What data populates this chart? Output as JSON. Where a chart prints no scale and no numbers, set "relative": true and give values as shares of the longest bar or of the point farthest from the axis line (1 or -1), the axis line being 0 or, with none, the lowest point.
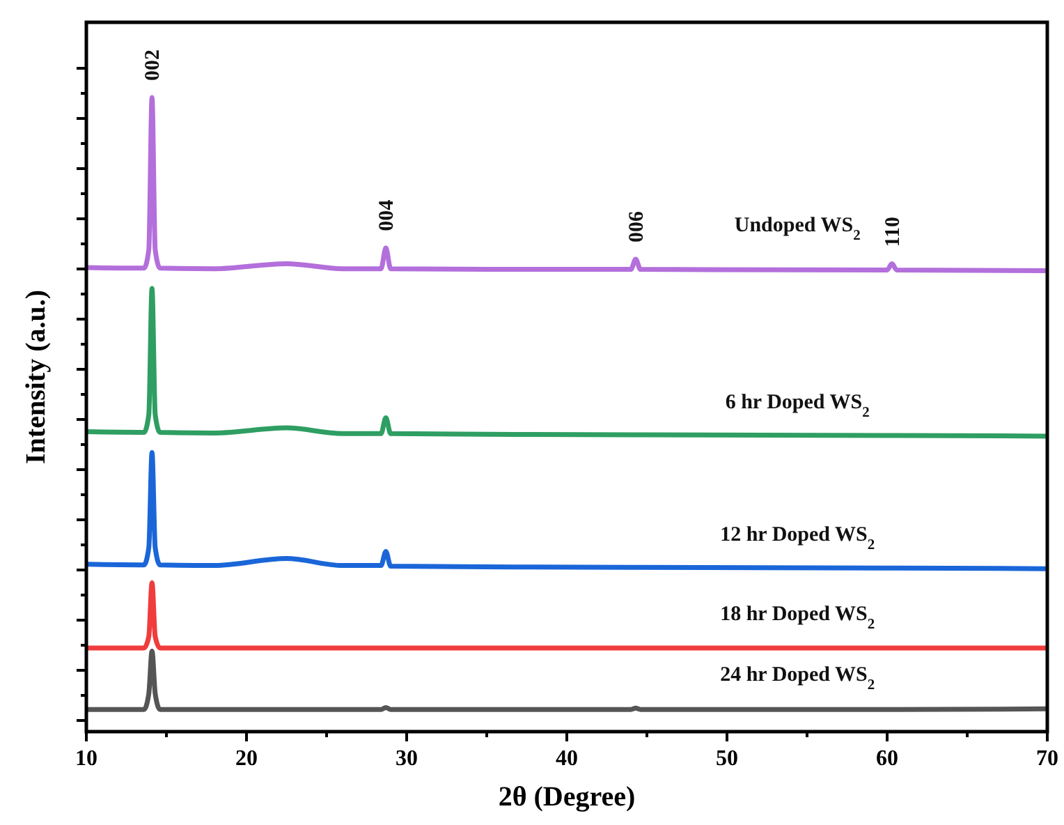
{
  "chart_data": {
    "type": "line",
    "relative": true,
    "xlabel": "2θ (Degree)",
    "ylabel": "Intensity (a.u.)",
    "x": [
      10,
      13.6,
      13.9,
      14.1,
      14.3,
      14.6,
      18,
      22.5,
      26,
      28.4,
      28.7,
      29.0,
      35,
      44.0,
      44.3,
      44.6,
      60.0,
      60.3,
      60.6,
      70
    ],
    "xlim": [
      10,
      70
    ],
    "xticks": [
      10,
      {
        "value": 15,
        "label": null
      },
      20,
      {
        "value": 25,
        "label": null
      },
      30,
      {
        "value": 35,
        "label": null
      },
      40,
      {
        "value": 45,
        "label": null
      },
      50,
      {
        "value": 55,
        "label": null
      },
      60,
      {
        "value": 65,
        "label": null
      },
      70
    ],
    "series": [
      {
        "name": "Undoped WS$_{2}$",
        "color": "#b36fdb",
        "values": [
          0.732,
          0.731,
          0.76,
          1.0,
          0.76,
          0.731,
          0.73,
          0.738,
          0.73,
          0.73,
          0.763,
          0.73,
          0.729,
          0.729,
          0.745,
          0.729,
          0.728,
          0.738,
          0.728,
          0.727
        ]
      },
      {
        "name": "6 hr Doped WS$_{2}$",
        "color": "#2e9e62",
        "values": [
          0.473,
          0.472,
          0.5,
          0.699,
          0.5,
          0.472,
          0.471,
          0.479,
          0.47,
          0.47,
          0.495,
          0.47,
          0.469,
          0.468,
          0.468,
          0.468,
          0.467,
          0.467,
          0.467,
          0.466
        ]
      },
      {
        "name": "12 hr Doped WS$_{2}$",
        "color": "#1a66d9",
        "values": [
          0.264,
          0.263,
          0.29,
          0.44,
          0.29,
          0.263,
          0.262,
          0.273,
          0.262,
          0.262,
          0.284,
          0.261,
          0.26,
          0.259,
          0.259,
          0.259,
          0.258,
          0.258,
          0.258,
          0.257
        ]
      },
      {
        "name": "18 hr Doped WS$_{2}$",
        "color": "#f03c3c",
        "values": [
          0.132,
          0.132,
          0.15,
          0.235,
          0.15,
          0.132,
          0.132,
          0.132,
          0.132,
          0.132,
          0.132,
          0.132,
          0.132,
          0.132,
          0.132,
          0.132,
          0.132,
          0.132,
          0.132,
          0.132
        ]
      },
      {
        "name": "24 hr Doped WS$_{2}$",
        "color": "#555555",
        "values": [
          0.035,
          0.035,
          0.06,
          0.127,
          0.06,
          0.035,
          0.035,
          0.035,
          0.035,
          0.035,
          0.038,
          0.035,
          0.035,
          0.035,
          0.037,
          0.035,
          0.035,
          0.035,
          0.035,
          0.036
        ]
      }
    ],
    "annotations": [
      {
        "text": "002",
        "x": 14.1,
        "y": 1.0
      },
      {
        "text": "004",
        "x": 28.7,
        "y": 0.763
      },
      {
        "text": "006",
        "x": 44.3,
        "y": 0.745
      },
      {
        "text": "110",
        "x": 60.3,
        "y": 0.738
      }
    ]
  }
}
